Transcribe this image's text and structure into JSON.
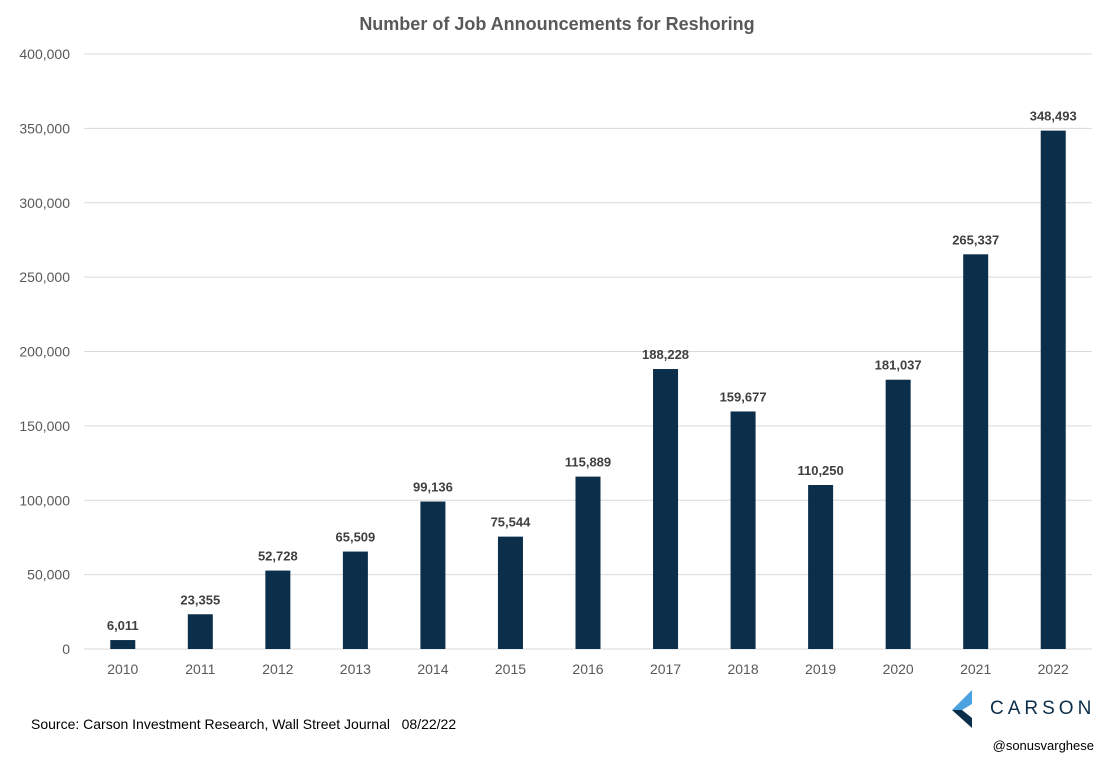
{
  "chart_data": {
    "type": "bar",
    "title": "Number of Job Announcements for Reshoring",
    "categories": [
      "2010",
      "2011",
      "2012",
      "2013",
      "2014",
      "2015",
      "2016",
      "2017",
      "2018",
      "2019",
      "2020",
      "2021",
      "2022"
    ],
    "values": [
      6011,
      23355,
      52728,
      65509,
      99136,
      75544,
      115889,
      188228,
      159677,
      110250,
      181037,
      265337,
      348493
    ],
    "data_labels": [
      "6,011",
      "23,355",
      "52,728",
      "65,509",
      "99,136",
      "75,544",
      "115,889",
      "188,228",
      "159,677",
      "110,250",
      "181,037",
      "265,337",
      "348,493"
    ],
    "xlabel": "",
    "ylabel": "",
    "ylim": [
      0,
      400000
    ],
    "yticks": [
      0,
      50000,
      100000,
      150000,
      200000,
      250000,
      300000,
      350000,
      400000
    ],
    "ytick_labels": [
      "0",
      "50,000",
      "100,000",
      "150,000",
      "200,000",
      "250,000",
      "300,000",
      "350,000",
      "400,000"
    ],
    "grid": true,
    "legend": "none",
    "bar_color": "#0b2e4a"
  },
  "footer": {
    "source": "Source: Carson Investment Research, Wall Street Journal   08/22/22",
    "brand_name": "CARSON",
    "handle": "@sonusvarghese"
  },
  "colors": {
    "logo_light": "#4aa3e0",
    "logo_dark": "#0b2e4a"
  }
}
